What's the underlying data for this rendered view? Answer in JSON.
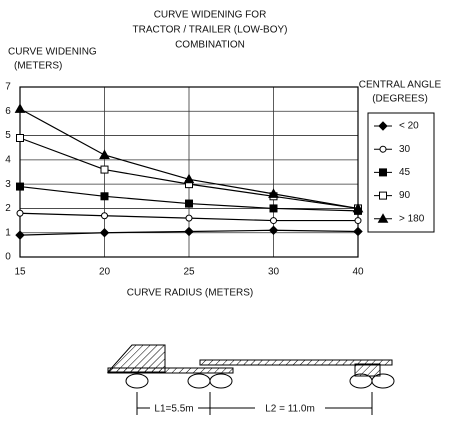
{
  "chart_data": {
    "type": "line",
    "title": [
      "CURVE WIDENING FOR",
      "TRACTOR / TRAILER (LOW-BOY)",
      "COMBINATION"
    ],
    "y_label": [
      "CURVE WIDENING",
      "(METERS)"
    ],
    "x_label": "CURVE RADIUS (METERS)",
    "legend_title": [
      "CENTRAL ANGLE",
      "(DEGREES)"
    ],
    "categories": [
      "15",
      "20",
      "25",
      "30",
      "40"
    ],
    "ylim": [
      0,
      7
    ],
    "yticks": [
      0,
      1,
      2,
      3,
      4,
      5,
      6,
      7
    ],
    "grid": true,
    "legend": "right",
    "series": [
      {
        "name": "< 20",
        "color": "#000",
        "marker": "diamond-filled",
        "values": [
          0.9,
          1.0,
          1.05,
          1.1,
          1.05
        ]
      },
      {
        "name": "30",
        "color": "#000",
        "marker": "circle-open",
        "values": [
          1.8,
          1.7,
          1.6,
          1.5,
          1.5
        ]
      },
      {
        "name": "45",
        "color": "#000",
        "marker": "square-filled",
        "values": [
          2.9,
          2.5,
          2.2,
          2.0,
          1.9
        ]
      },
      {
        "name": "90",
        "color": "#000",
        "marker": "square-open",
        "values": [
          4.9,
          3.6,
          3.0,
          2.5,
          2.0
        ]
      },
      {
        "name": "> 180",
        "color": "#000",
        "marker": "triangle-filled",
        "values": [
          6.1,
          4.2,
          3.2,
          2.6,
          2.0
        ]
      }
    ]
  },
  "diagram": {
    "l1_label": "L1=5.5m",
    "l2_label": "L2 = 11.0m"
  }
}
